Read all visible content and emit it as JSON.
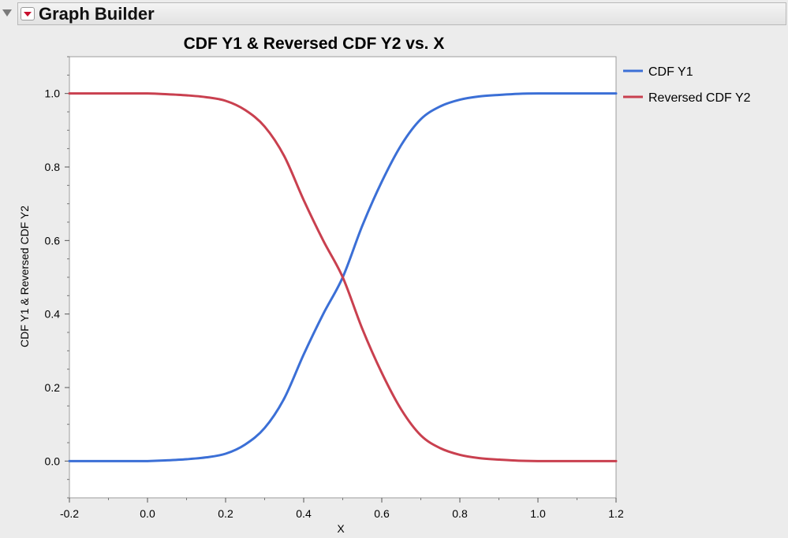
{
  "header": {
    "title": "Graph Builder"
  },
  "chart_data": {
    "type": "line",
    "title": "CDF Y1 & Reversed CDF Y2 vs. X",
    "xlabel": "X",
    "ylabel": "CDF Y1 & Reversed CDF Y2",
    "xlim": [
      -0.2,
      1.2
    ],
    "ylim": [
      -0.1,
      1.1
    ],
    "xticks": [
      "-0.2",
      "0.0",
      "0.2",
      "0.4",
      "0.6",
      "0.8",
      "1.0",
      "1.2"
    ],
    "yticks": [
      "0.0",
      "0.2",
      "0.4",
      "0.6",
      "0.8",
      "1.0"
    ],
    "legend_position": "right",
    "grid": false,
    "series": [
      {
        "name": "CDF Y1",
        "color": "#3b6fd6",
        "x": [
          -0.2,
          -0.1,
          0.0,
          0.05,
          0.1,
          0.15,
          0.2,
          0.25,
          0.3,
          0.35,
          0.4,
          0.45,
          0.5,
          0.55,
          0.6,
          0.65,
          0.7,
          0.75,
          0.8,
          0.85,
          0.9,
          0.95,
          1.0,
          1.1,
          1.2
        ],
        "values": [
          0.0,
          0.0,
          0.0,
          0.002,
          0.005,
          0.01,
          0.02,
          0.045,
          0.09,
          0.17,
          0.29,
          0.4,
          0.5,
          0.64,
          0.76,
          0.86,
          0.93,
          0.965,
          0.983,
          0.992,
          0.996,
          0.999,
          1.0,
          1.0,
          1.0
        ]
      },
      {
        "name": "Reversed CDF Y2",
        "color": "#c9404f",
        "x": [
          -0.2,
          -0.1,
          0.0,
          0.05,
          0.1,
          0.15,
          0.2,
          0.25,
          0.3,
          0.35,
          0.4,
          0.45,
          0.5,
          0.55,
          0.6,
          0.65,
          0.7,
          0.75,
          0.8,
          0.85,
          0.9,
          0.95,
          1.0,
          1.1,
          1.2
        ],
        "values": [
          1.0,
          1.0,
          1.0,
          0.998,
          0.995,
          0.99,
          0.98,
          0.955,
          0.91,
          0.83,
          0.71,
          0.6,
          0.5,
          0.36,
          0.24,
          0.14,
          0.07,
          0.035,
          0.017,
          0.008,
          0.004,
          0.001,
          0.0,
          0.0,
          0.0
        ]
      }
    ]
  }
}
